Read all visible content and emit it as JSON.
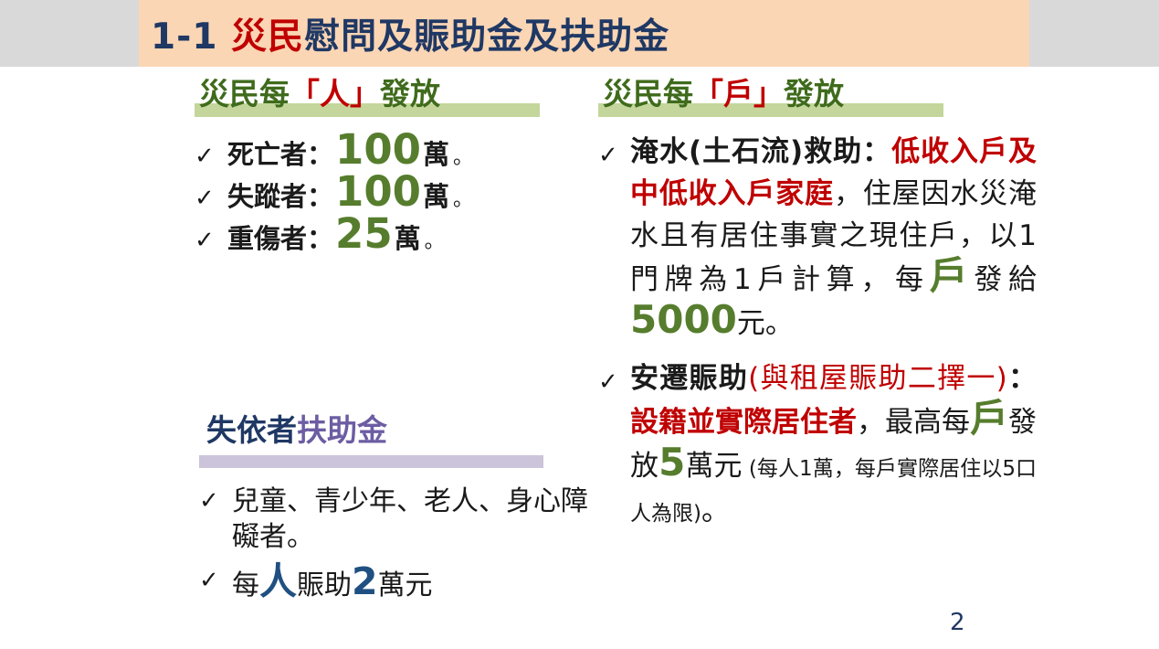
{
  "header": {
    "prefix": "1-1 ",
    "highlight": "災民",
    "rest": "慰問及賑助金及扶助金"
  },
  "colors": {
    "header_band": "#FBD6B4",
    "corner_gray": "#D9D9D9",
    "navy": "#1F3864",
    "red": "#C00000",
    "green_title": "#3F6B1C",
    "green_number": "#567D2D",
    "green_bar": "#C4D69B",
    "purple_text": "#6C5DA3",
    "purple_bar": "#CCC4DA",
    "blue_number": "#1F5081"
  },
  "left_panel": {
    "title": {
      "pre": "災民每",
      "red": "「人」",
      "post": "發放"
    },
    "items": [
      {
        "check": "✓",
        "label": "死亡者：",
        "amount": "100",
        "unit": "萬",
        "period": "。"
      },
      {
        "check": "✓",
        "label": "失蹤者：",
        "amount": "100",
        "unit": "萬",
        "period": "。"
      },
      {
        "check": "✓",
        "label": "重傷者：",
        "amount": "25",
        "unit": "萬",
        "period": "。"
      }
    ]
  },
  "right_panel": {
    "title": {
      "pre": "災民每",
      "red": "「戶」",
      "post": "發放"
    },
    "item1": {
      "check": "✓",
      "bold_black": "淹水(土石流)救助：",
      "bold_red": "低收入戶及中低收入戶家庭",
      "body1": "，住屋因水災淹水且有居住事實之現住戶，以1門牌為1戶計算，每",
      "big_green1": "戶",
      "body2": "發給",
      "big_green2": "5000",
      "body3": "元。"
    },
    "item2": {
      "check": "✓",
      "bold_black": "安遷賑助",
      "red_paren": "(與租屋賑助二擇一)",
      "colon": "：",
      "bold_red": "設籍並實際居住者",
      "body1": "，最高每",
      "big_green1": "戶",
      "body2": "發放",
      "big_green2": "5",
      "body3": "萬元",
      "small_note": " (每人1萬，每戶實際居住以5口人為限)",
      "period": "。"
    }
  },
  "aid_section": {
    "title": {
      "navy": "失依者",
      "purple": "扶助金"
    },
    "items": [
      {
        "check": "✓",
        "text": "兒童、青少年、老人、身心障礙者。"
      },
      {
        "check": "✓",
        "pre": "每",
        "big_blue1": "人",
        "mid": "賑助",
        "big_blue2": "2",
        "post": "萬元"
      }
    ]
  },
  "page": {
    "number": "2"
  }
}
